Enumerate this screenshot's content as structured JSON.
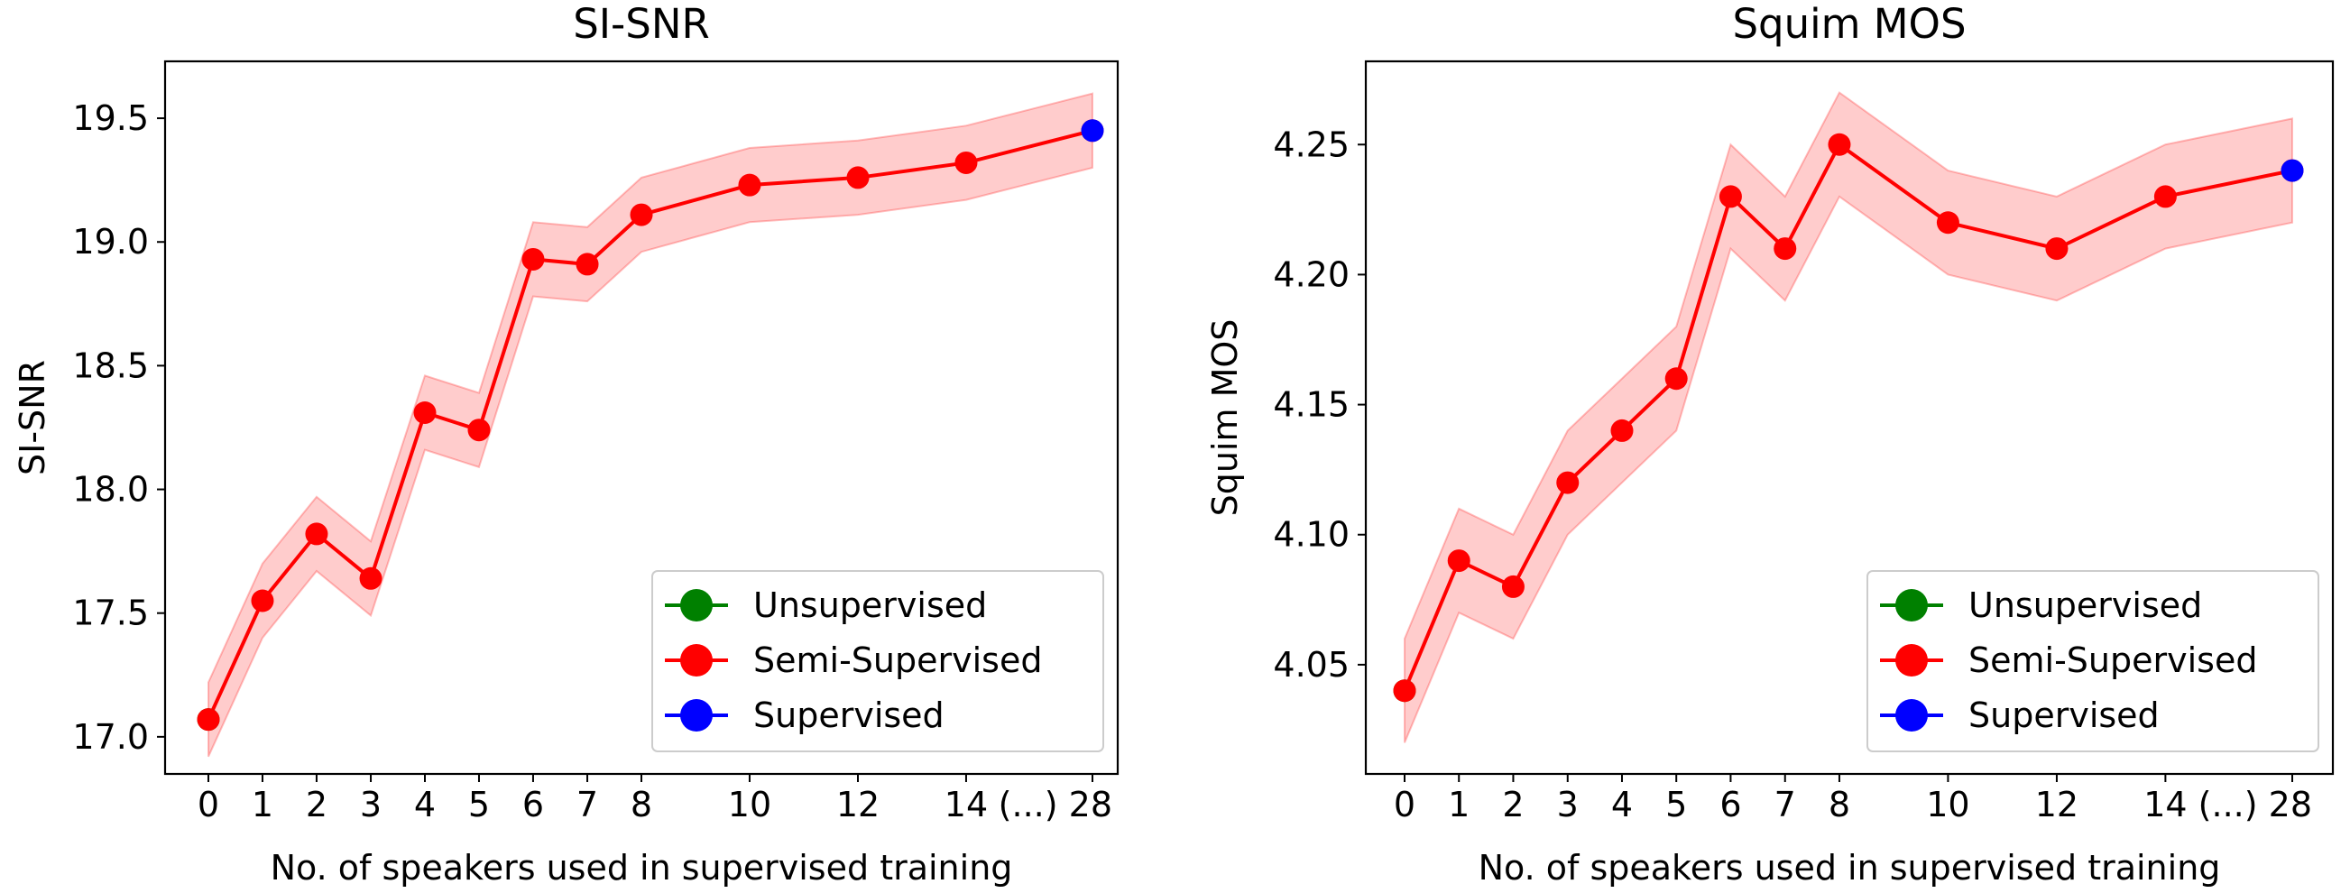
{
  "chart_data": [
    {
      "type": "line",
      "title": "SI-SNR",
      "xlabel": "No. of speakers used in supervised training",
      "ylabel": "SI-SNR",
      "ylim": [
        16.85,
        19.73
      ],
      "y_ticks": [
        17.0,
        17.5,
        18.0,
        18.5,
        19.0,
        19.5
      ],
      "y_tick_labels": [
        "17.0",
        "17.5",
        "18.0",
        "18.5",
        "19.0",
        "19.5"
      ],
      "x_ticks": [
        "0",
        "1",
        "2",
        "3",
        "4",
        "5",
        "6",
        "7",
        "8",
        "10",
        "12",
        "14",
        "(...) 28"
      ],
      "grid": false,
      "legend_position": "lower-right",
      "series": [
        {
          "name": "Unsupervised",
          "color": "#008000",
          "x": [
            "0"
          ],
          "y": [
            17.07
          ]
        },
        {
          "name": "Semi-Supervised",
          "color": "#ff0000",
          "x": [
            "0",
            "1",
            "2",
            "3",
            "4",
            "5",
            "6",
            "7",
            "8",
            "10",
            "12",
            "14",
            "(...) 28"
          ],
          "y": [
            17.07,
            17.55,
            17.82,
            17.64,
            18.31,
            18.24,
            18.93,
            18.91,
            19.11,
            19.23,
            19.26,
            19.32,
            19.45
          ],
          "band_upper": [
            17.22,
            17.7,
            17.97,
            17.79,
            18.46,
            18.39,
            19.08,
            19.06,
            19.26,
            19.38,
            19.41,
            19.47,
            19.6
          ],
          "band_lower": [
            16.92,
            17.4,
            17.67,
            17.49,
            18.16,
            18.09,
            18.78,
            18.76,
            18.96,
            19.08,
            19.11,
            19.17,
            19.3
          ]
        },
        {
          "name": "Supervised",
          "color": "#0000ff",
          "x": [
            "(...) 28"
          ],
          "y": [
            19.45
          ]
        }
      ]
    },
    {
      "type": "line",
      "title": "Squim MOS",
      "xlabel": "No. of speakers used in supervised training",
      "ylabel": "Squim MOS",
      "ylim": [
        4.008,
        4.282
      ],
      "y_ticks": [
        4.05,
        4.1,
        4.15,
        4.2,
        4.25
      ],
      "y_tick_labels": [
        "4.05",
        "4.10",
        "4.15",
        "4.20",
        "4.25"
      ],
      "x_ticks": [
        "0",
        "1",
        "2",
        "3",
        "4",
        "5",
        "6",
        "7",
        "8",
        "10",
        "12",
        "14",
        "(...) 28"
      ],
      "grid": false,
      "legend_position": "lower-right",
      "series": [
        {
          "name": "Unsupervised",
          "color": "#008000",
          "x": [
            "0"
          ],
          "y": [
            4.04
          ]
        },
        {
          "name": "Semi-Supervised",
          "color": "#ff0000",
          "x": [
            "0",
            "1",
            "2",
            "3",
            "4",
            "5",
            "6",
            "7",
            "8",
            "10",
            "12",
            "14",
            "(...) 28"
          ],
          "y": [
            4.04,
            4.09,
            4.08,
            4.12,
            4.14,
            4.16,
            4.23,
            4.21,
            4.25,
            4.22,
            4.21,
            4.23,
            4.24
          ],
          "band_upper": [
            4.06,
            4.11,
            4.1,
            4.14,
            4.16,
            4.18,
            4.25,
            4.23,
            4.27,
            4.24,
            4.23,
            4.25,
            4.26
          ],
          "band_lower": [
            4.02,
            4.07,
            4.06,
            4.1,
            4.12,
            4.14,
            4.21,
            4.19,
            4.23,
            4.2,
            4.19,
            4.21,
            4.22
          ]
        },
        {
          "name": "Supervised",
          "color": "#0000ff",
          "x": [
            "(...) 28"
          ],
          "y": [
            4.24
          ]
        }
      ]
    }
  ]
}
